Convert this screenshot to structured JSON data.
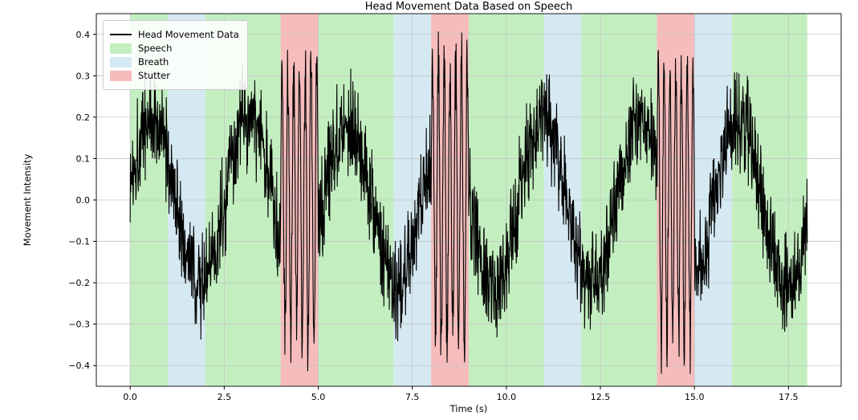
{
  "figure": {
    "background": "#ffffff"
  },
  "chart_data": {
    "type": "line",
    "title": "Head Movement Data Based on Speech",
    "xlabel": "Time (s)",
    "ylabel": "Movement Intensity",
    "xlim": [
      -0.9,
      18.9
    ],
    "ylim": [
      -0.45,
      0.45
    ],
    "x_ticks": [
      0,
      2.5,
      5,
      7.5,
      10,
      12.5,
      15,
      17.5
    ],
    "x_tick_labels": [
      "0.0",
      "2.5",
      "5.0",
      "7.5",
      "10.0",
      "12.5",
      "15.0",
      "17.5"
    ],
    "y_ticks": [
      -0.4,
      -0.3,
      -0.2,
      -0.1,
      0,
      0.1,
      0.2,
      0.3,
      0.4
    ],
    "y_tick_labels": [
      "−0.4",
      "−0.3",
      "−0.2",
      "−0.1",
      "0.0",
      "0.1",
      "0.2",
      "0.3",
      "0.4"
    ],
    "grid": true,
    "grid_color": "#c4c4c4",
    "line_color": "#000000",
    "frame_color": "#1a1a1a",
    "region_colors": {
      "speech": "#c3efc0",
      "breath": "#d5e9f2",
      "stutter": "#f6bcbc"
    },
    "regions": [
      {
        "type": "speech",
        "start": 0,
        "end": 1
      },
      {
        "type": "breath",
        "start": 1,
        "end": 2
      },
      {
        "type": "speech",
        "start": 2,
        "end": 4
      },
      {
        "type": "stutter",
        "start": 4,
        "end": 5
      },
      {
        "type": "speech",
        "start": 5,
        "end": 7
      },
      {
        "type": "breath",
        "start": 7,
        "end": 8
      },
      {
        "type": "stutter",
        "start": 8,
        "end": 9
      },
      {
        "type": "speech",
        "start": 9,
        "end": 11
      },
      {
        "type": "breath",
        "start": 11,
        "end": 12
      },
      {
        "type": "speech",
        "start": 12,
        "end": 14
      },
      {
        "type": "stutter",
        "start": 14,
        "end": 15
      },
      {
        "type": "breath",
        "start": 15,
        "end": 16
      },
      {
        "type": "speech",
        "start": 16,
        "end": 18
      }
    ],
    "legend": {
      "position": "upper-left",
      "entries": [
        {
          "label": "Head Movement Data",
          "swatch": "line",
          "color": "#000000"
        },
        {
          "label": "Speech",
          "swatch": "patch",
          "color": "#c3efc0"
        },
        {
          "label": "Breath",
          "swatch": "patch",
          "color": "#d5e9f2"
        },
        {
          "label": "Stutter",
          "swatch": "patch",
          "color": "#f6bcbc"
        }
      ]
    },
    "signal": {
      "t_start": 0,
      "t_end": 18,
      "dt": 0.008,
      "base_amplitude": 0.2,
      "base_period": 2.6,
      "base_phase": 0.2,
      "noise_level": 0.075,
      "stutter_amplitude": 0.34,
      "stutter_frequency": 6.5,
      "stutter_noise": 0.05,
      "clip": 0.42,
      "seed": 1337
    }
  }
}
